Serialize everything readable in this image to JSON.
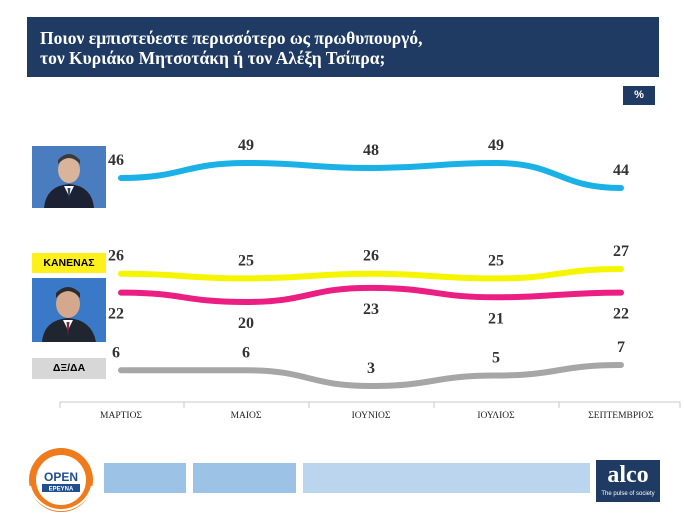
{
  "title": {
    "line1": "Ποιον εμπιστεύεστε περισσότερο ως πρωθυπουργό,",
    "line2": "τον Κυριάκο Μητσοτάκη ή τον Αλέξη Τσίπρα;"
  },
  "unit_badge": "%",
  "chart_data": {
    "type": "line",
    "categories": [
      "ΜΑΡΤΙΟΣ",
      "ΜΑΙΟΣ",
      "ΙΟΥΝΙΟΣ",
      "ΙΟΥΛΙΟΣ",
      "ΣΕΠΤΕΜΒΡΙΟΣ"
    ],
    "series": [
      {
        "name": "",
        "values": [
          46,
          49,
          48,
          49,
          44
        ],
        "color": "#1ab1e6"
      },
      {
        "name": "ΚΑΝΕΝΑΣ",
        "values": [
          26,
          25,
          26,
          25,
          27
        ],
        "color": "#f5f500"
      },
      {
        "name": "",
        "values": [
          22,
          20,
          23,
          21,
          22
        ],
        "color": "#ea1e83"
      },
      {
        "name": "ΔΞ/ΔΑ",
        "values": [
          6,
          6,
          3,
          5,
          7
        ],
        "color": "#a6a6a6"
      }
    ],
    "label_positions": [
      "above",
      "above",
      "below",
      "above"
    ],
    "grid": false,
    "legend": "left"
  },
  "logos": {
    "open_top": "OPEN",
    "open_bottom": "ΕΡΕΥΝΑ",
    "alco": "alco",
    "alco_tagline": "The pulse of society"
  }
}
